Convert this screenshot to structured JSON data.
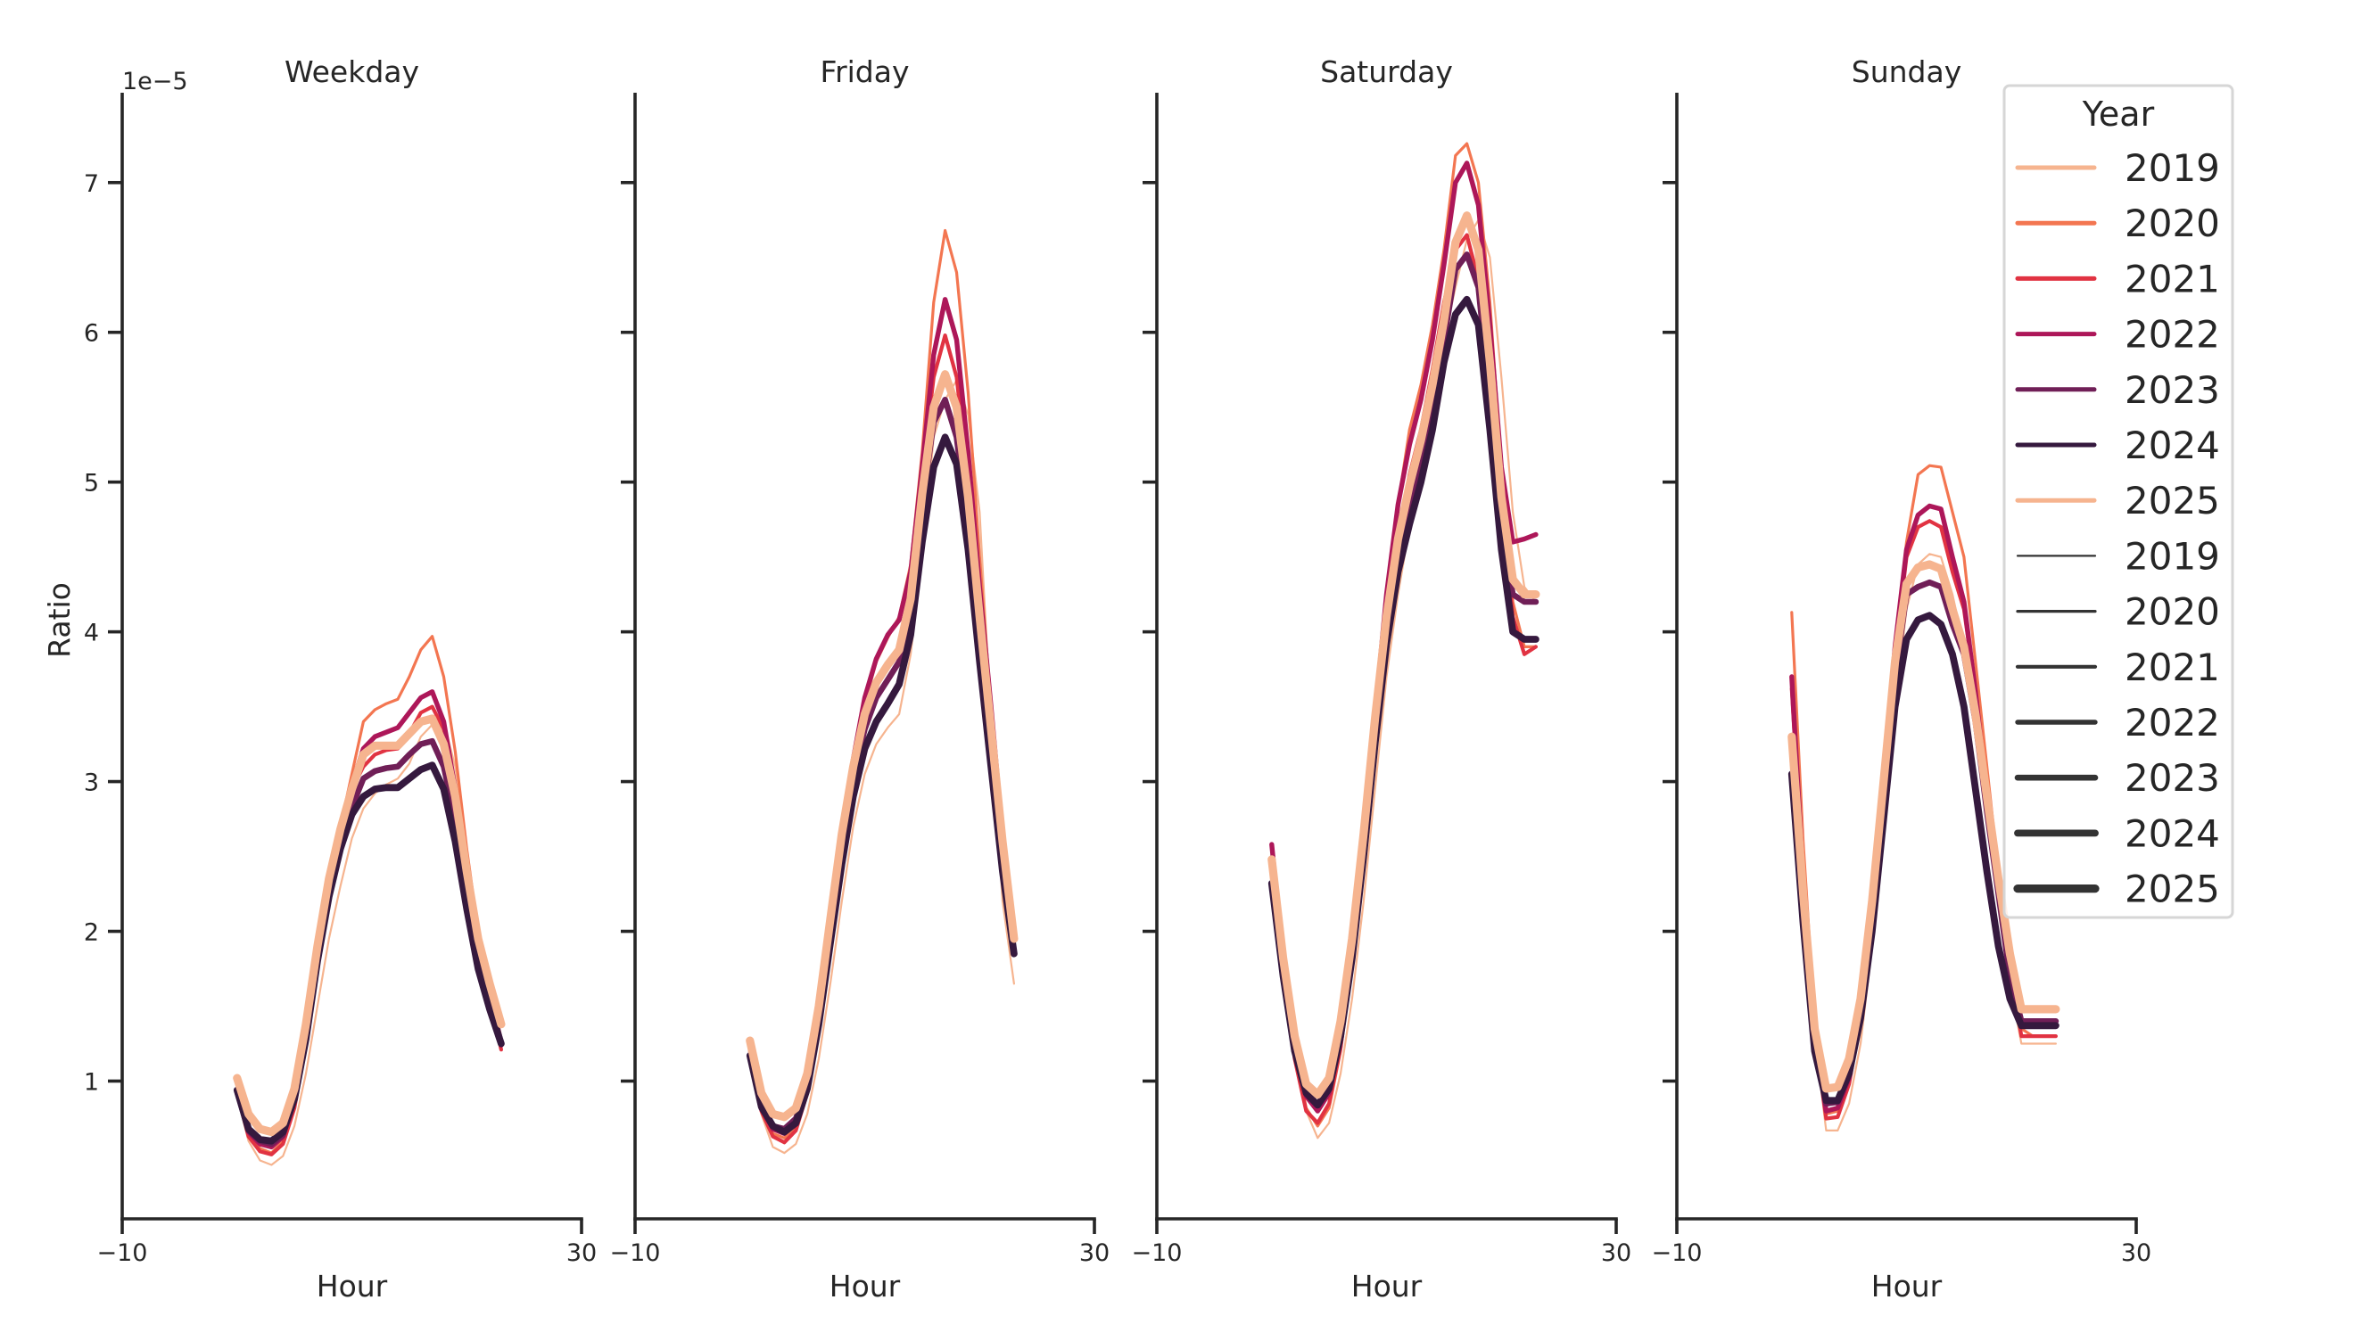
{
  "figure": {
    "legend": {
      "title": "Year",
      "hue_entries": [
        {
          "label": "2019",
          "color": "#f6b48f"
        },
        {
          "label": "2020",
          "color": "#f37651"
        },
        {
          "label": "2021",
          "color": "#e13342"
        },
        {
          "label": "2022",
          "color": "#ad1759"
        },
        {
          "label": "2023",
          "color": "#701f57"
        },
        {
          "label": "2024",
          "color": "#35193e"
        },
        {
          "label": "2025",
          "color": "#f6b48f"
        }
      ],
      "size_entries": [
        {
          "label": "2019",
          "width": 2.2
        },
        {
          "label": "2020",
          "width": 3.2
        },
        {
          "label": "2021",
          "width": 4.2
        },
        {
          "label": "2022",
          "width": 5.4
        },
        {
          "label": "2023",
          "width": 6.6
        },
        {
          "label": "2024",
          "width": 7.8
        },
        {
          "label": "2025",
          "width": 9.2
        }
      ],
      "size_color": "#333333"
    }
  },
  "chart_data": {
    "type": "line",
    "title": "",
    "xlabel": "Hour",
    "ylabel": "Ratio",
    "y_offset_label": "1e−5",
    "xlim": [
      -10,
      30
    ],
    "ylim": [
      0.08,
      7.6
    ],
    "xticks": [
      -10,
      30
    ],
    "xtick_labels": [
      "−10",
      "30"
    ],
    "yticks": [
      1,
      2,
      3,
      4,
      5,
      6,
      7
    ],
    "ytick_labels": [
      "1",
      "2",
      "3",
      "4",
      "5",
      "6",
      "7"
    ],
    "grid": false,
    "legend_position": "upper right",
    "x": [
      0,
      1,
      2,
      3,
      4,
      5,
      6,
      7,
      8,
      9,
      10,
      11,
      12,
      13,
      14,
      15,
      16,
      17,
      18,
      19,
      20,
      21,
      22,
      23
    ],
    "years": [
      "2019",
      "2020",
      "2021",
      "2022",
      "2023",
      "2024",
      "2025"
    ],
    "colors": {
      "2019": "#f6b48f",
      "2020": "#f37651",
      "2021": "#e13342",
      "2022": "#ad1759",
      "2023": "#701f57",
      "2024": "#35193e",
      "2025": "#f6b48f"
    },
    "line_widths": {
      "2019": 2.2,
      "2020": 3.2,
      "2021": 4.2,
      "2022": 5.4,
      "2023": 6.6,
      "2024": 7.8,
      "2025": 9.2
    },
    "panels": [
      {
        "title": "Weekday",
        "series": [
          {
            "name": "2019",
            "values": [
              0.9,
              0.6,
              0.47,
              0.44,
              0.5,
              0.7,
              1.05,
              1.5,
              1.95,
              2.3,
              2.62,
              2.82,
              2.92,
              2.98,
              3.02,
              3.12,
              3.3,
              3.38,
              3.4,
              3.1,
              2.55,
              2.0,
              1.65,
              1.3
            ]
          },
          {
            "name": "2020",
            "values": [
              0.92,
              0.65,
              0.55,
              0.52,
              0.6,
              0.85,
              1.25,
              1.8,
              2.3,
              2.7,
              3.05,
              3.4,
              3.48,
              3.52,
              3.55,
              3.7,
              3.88,
              3.97,
              3.7,
              3.2,
              2.55,
              2.0,
              1.6,
              1.25
            ]
          },
          {
            "name": "2021",
            "values": [
              0.92,
              0.63,
              0.53,
              0.51,
              0.58,
              0.82,
              1.25,
              1.8,
              2.28,
              2.66,
              2.95,
              3.1,
              3.18,
              3.21,
              3.22,
              3.32,
              3.46,
              3.5,
              3.35,
              2.95,
              2.4,
              1.9,
              1.55,
              1.21
            ]
          },
          {
            "name": "2022",
            "values": [
              0.93,
              0.66,
              0.58,
              0.56,
              0.63,
              0.88,
              1.3,
              1.85,
              2.32,
              2.68,
              2.98,
              3.22,
              3.3,
              3.33,
              3.36,
              3.46,
              3.56,
              3.6,
              3.4,
              2.95,
              2.4,
              1.9,
              1.55,
              1.24
            ]
          },
          {
            "name": "2023",
            "values": [
              0.93,
              0.67,
              0.6,
              0.58,
              0.64,
              0.88,
              1.28,
              1.82,
              2.25,
              2.58,
              2.83,
              3.02,
              3.07,
              3.09,
              3.1,
              3.18,
              3.25,
              3.27,
              3.1,
              2.75,
              2.3,
              1.85,
              1.55,
              1.25
            ]
          },
          {
            "name": "2024",
            "values": [
              0.94,
              0.68,
              0.61,
              0.6,
              0.66,
              0.88,
              1.28,
              1.8,
              2.23,
              2.55,
              2.78,
              2.9,
              2.95,
              2.96,
              2.96,
              3.02,
              3.08,
              3.11,
              2.95,
              2.6,
              2.15,
              1.75,
              1.48,
              1.25
            ]
          },
          {
            "name": "2025",
            "values": [
              1.02,
              0.78,
              0.68,
              0.66,
              0.72,
              0.95,
              1.38,
              1.9,
              2.35,
              2.68,
              2.95,
              3.18,
              3.24,
              3.24,
              3.24,
              3.32,
              3.4,
              3.42,
              3.25,
              2.9,
              2.4,
              1.95,
              1.65,
              1.38
            ]
          }
        ]
      },
      {
        "title": "Friday",
        "series": [
          {
            "name": "2019",
            "values": [
              1.2,
              0.78,
              0.56,
              0.52,
              0.58,
              0.78,
              1.15,
              1.65,
              2.2,
              2.7,
              3.05,
              3.25,
              3.36,
              3.45,
              3.85,
              4.5,
              5.3,
              5.55,
              5.68,
              5.45,
              4.8,
              3.4,
              2.2,
              1.65
            ]
          },
          {
            "name": "2020",
            "values": [
              1.2,
              0.82,
              0.65,
              0.62,
              0.7,
              0.95,
              1.4,
              2.0,
              2.6,
              3.1,
              3.52,
              3.8,
              3.96,
              4.1,
              4.45,
              5.2,
              6.2,
              6.68,
              6.4,
              5.6,
              4.5,
              3.5,
              2.6,
              2.0
            ]
          },
          {
            "name": "2021",
            "values": [
              1.2,
              0.8,
              0.63,
              0.59,
              0.67,
              0.92,
              1.38,
              1.98,
              2.58,
              3.05,
              3.42,
              3.65,
              3.78,
              3.9,
              4.3,
              5.05,
              5.7,
              5.98,
              5.7,
              5.0,
              4.2,
              3.4,
              2.6,
              1.9
            ]
          },
          {
            "name": "2022",
            "values": [
              1.18,
              0.82,
              0.68,
              0.65,
              0.72,
              0.98,
              1.45,
              2.05,
              2.65,
              3.15,
              3.56,
              3.82,
              3.98,
              4.08,
              4.4,
              5.1,
              5.85,
              6.22,
              5.95,
              5.2,
              4.3,
              3.5,
              2.65,
              1.95
            ]
          },
          {
            "name": "2023",
            "values": [
              1.17,
              0.82,
              0.7,
              0.68,
              0.75,
              0.98,
              1.42,
              1.98,
              2.55,
              3.02,
              3.35,
              3.56,
              3.68,
              3.8,
              4.15,
              4.85,
              5.4,
              5.55,
              5.3,
              4.7,
              3.95,
              3.25,
              2.55,
              1.85
            ]
          },
          {
            "name": "2024",
            "values": [
              1.17,
              0.83,
              0.7,
              0.66,
              0.72,
              0.95,
              1.38,
              1.92,
              2.45,
              2.9,
              3.22,
              3.4,
              3.52,
              3.65,
              3.98,
              4.6,
              5.1,
              5.3,
              5.12,
              4.55,
              3.8,
              3.1,
              2.4,
              1.85
            ]
          },
          {
            "name": "2025",
            "values": [
              1.27,
              0.92,
              0.78,
              0.76,
              0.82,
              1.05,
              1.5,
              2.08,
              2.65,
              3.1,
              3.45,
              3.66,
              3.78,
              3.88,
              4.22,
              4.92,
              5.5,
              5.72,
              5.5,
              4.9,
              4.1,
              3.35,
              2.6,
              1.95
            ]
          }
        ]
      },
      {
        "title": "Saturday",
        "series": [
          {
            "name": "2019",
            "values": [
              2.4,
              1.75,
              1.2,
              0.8,
              0.62,
              0.72,
              1.05,
              1.55,
              2.2,
              2.95,
              3.7,
              4.25,
              4.7,
              5.15,
              5.55,
              5.95,
              6.3,
              6.62,
              6.75,
              6.5,
              5.7,
              4.8,
              4.3,
              4.2
            ]
          },
          {
            "name": "2020",
            "values": [
              2.55,
              1.8,
              1.2,
              0.82,
              0.7,
              0.82,
              1.2,
              1.8,
              2.55,
              3.4,
              4.2,
              4.85,
              5.35,
              5.65,
              6.05,
              6.55,
              7.18,
              7.26,
              7.0,
              6.2,
              5.1,
              4.2,
              3.9,
              3.9
            ]
          },
          {
            "name": "2021",
            "values": [
              2.45,
              1.75,
              1.15,
              0.8,
              0.72,
              0.85,
              1.22,
              1.8,
              2.55,
              3.35,
              4.1,
              4.65,
              5.05,
              5.35,
              5.75,
              6.2,
              6.55,
              6.65,
              6.35,
              5.65,
              4.85,
              4.1,
              3.85,
              3.9
            ]
          },
          {
            "name": "2022",
            "values": [
              2.58,
              1.82,
              1.25,
              0.9,
              0.8,
              0.92,
              1.3,
              1.88,
              2.62,
              3.45,
              4.25,
              4.85,
              5.25,
              5.55,
              5.95,
              6.45,
              7.0,
              7.13,
              6.85,
              6.05,
              5.1,
              4.6,
              4.62,
              4.65
            ]
          },
          {
            "name": "2023",
            "values": [
              2.32,
              1.72,
              1.22,
              0.92,
              0.84,
              0.95,
              1.3,
              1.85,
              2.55,
              3.3,
              4.0,
              4.5,
              4.85,
              5.15,
              5.5,
              5.95,
              6.42,
              6.52,
              6.3,
              5.55,
              4.7,
              4.25,
              4.2,
              4.2
            ]
          },
          {
            "name": "2024",
            "values": [
              2.32,
              1.7,
              1.2,
              0.92,
              0.84,
              0.95,
              1.3,
              1.82,
              2.5,
              3.25,
              3.92,
              4.4,
              4.72,
              5.0,
              5.35,
              5.8,
              6.12,
              6.22,
              6.05,
              5.35,
              4.55,
              4.0,
              3.95,
              3.95
            ]
          },
          {
            "name": "2025",
            "values": [
              2.48,
              1.82,
              1.3,
              0.98,
              0.91,
              1.02,
              1.4,
              1.95,
              2.65,
              3.42,
              4.1,
              4.62,
              4.98,
              5.28,
              5.65,
              6.08,
              6.6,
              6.78,
              6.55,
              5.8,
              4.9,
              4.35,
              4.25,
              4.25
            ]
          }
        ]
      },
      {
        "title": "Sunday",
        "series": [
          {
            "name": "2019",
            "values": [
              3.3,
              2.2,
              1.3,
              0.67,
              0.67,
              0.85,
              1.25,
              1.9,
              2.7,
              3.5,
              4.15,
              4.45,
              4.52,
              4.5,
              4.25,
              3.9,
              3.4,
              2.8,
              2.2,
              1.65,
              1.25,
              1.25,
              1.25,
              1.25
            ]
          },
          {
            "name": "2020",
            "values": [
              4.13,
              2.6,
              1.4,
              0.78,
              0.8,
              1.0,
              1.45,
              2.15,
              3.0,
              3.9,
              4.6,
              5.05,
              5.11,
              5.1,
              4.8,
              4.5,
              3.8,
              3.1,
              2.4,
              1.8,
              1.35,
              1.3,
              1.3,
              1.3
            ]
          },
          {
            "name": "2021",
            "values": [
              3.62,
              2.3,
              1.3,
              0.75,
              0.76,
              0.98,
              1.42,
              2.1,
              2.95,
              3.85,
              4.5,
              4.7,
              4.74,
              4.7,
              4.4,
              4.15,
              3.6,
              2.9,
              2.3,
              1.75,
              1.3,
              1.3,
              1.3,
              1.3
            ]
          },
          {
            "name": "2022",
            "values": [
              3.7,
              2.35,
              1.3,
              0.8,
              0.82,
              1.02,
              1.48,
              2.15,
              3.0,
              3.9,
              4.55,
              4.78,
              4.84,
              4.82,
              4.5,
              4.2,
              3.6,
              2.9,
              2.3,
              1.75,
              1.38,
              1.38,
              1.38,
              1.38
            ]
          },
          {
            "name": "2023",
            "values": [
              3.25,
              2.15,
              1.25,
              0.85,
              0.86,
              1.05,
              1.45,
              2.1,
              2.9,
              3.7,
              4.25,
              4.3,
              4.33,
              4.3,
              4.05,
              3.85,
              3.4,
              2.8,
              2.25,
              1.7,
              1.4,
              1.4,
              1.4,
              1.4
            ]
          },
          {
            "name": "2024",
            "values": [
              3.05,
              2.05,
              1.2,
              0.87,
              0.87,
              1.05,
              1.42,
              2.0,
              2.75,
              3.5,
              3.95,
              4.08,
              4.11,
              4.05,
              3.85,
              3.5,
              2.95,
              2.4,
              1.9,
              1.55,
              1.37,
              1.37,
              1.37,
              1.37
            ]
          },
          {
            "name": "2025",
            "values": [
              3.3,
              2.25,
              1.35,
              0.95,
              0.96,
              1.15,
              1.55,
              2.2,
              3.0,
              3.8,
              4.32,
              4.43,
              4.45,
              4.42,
              4.15,
              3.9,
              3.45,
              2.9,
              2.35,
              1.85,
              1.48,
              1.48,
              1.48,
              1.48
            ]
          }
        ]
      }
    ]
  }
}
